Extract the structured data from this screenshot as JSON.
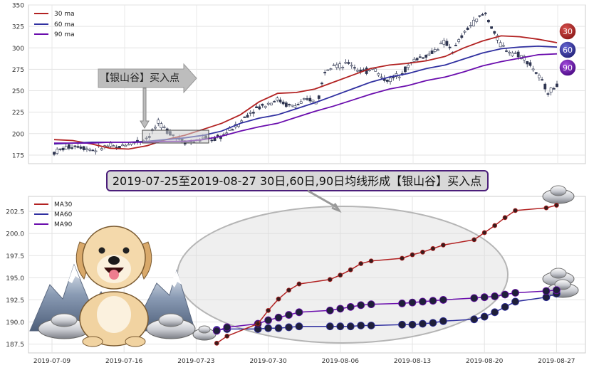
{
  "chart_data": [
    {
      "type": "candlestick",
      "ylim": [
        165,
        350
      ],
      "yticks": [
        175,
        200,
        225,
        250,
        275,
        300,
        325,
        350
      ],
      "grid": true,
      "legend": {
        "placement": "top-left",
        "entries": [
          "30 ma",
          "60 ma",
          "90 ma"
        ]
      },
      "series": [
        {
          "name": "30 ma",
          "color": "#b22222",
          "values": [
            193,
            192,
            188,
            183,
            182,
            186,
            193,
            198,
            205,
            212,
            222,
            237,
            247,
            248,
            252,
            260,
            268,
            276,
            280,
            282,
            285,
            290,
            300,
            308,
            314,
            313,
            310,
            306
          ]
        },
        {
          "name": "60 ma",
          "color": "#3030a0",
          "values": [
            188,
            189,
            190,
            190,
            190,
            191,
            193,
            195,
            198,
            203,
            212,
            218,
            222,
            229,
            236,
            244,
            252,
            260,
            266,
            270,
            276,
            280,
            287,
            294,
            299,
            301,
            302,
            301
          ]
        },
        {
          "name": "90 ma",
          "color": "#6a0dad",
          "values": [
            189,
            189,
            189,
            190,
            190,
            190,
            191,
            191,
            193,
            197,
            203,
            208,
            212,
            219,
            226,
            232,
            239,
            246,
            252,
            256,
            262,
            266,
            272,
            279,
            284,
            288,
            292,
            293
          ]
        }
      ],
      "price_path": [
        178,
        182,
        185,
        186,
        183,
        181,
        184,
        186,
        183,
        188,
        190,
        192,
        198,
        212,
        205,
        198,
        192,
        190,
        192,
        195,
        193,
        197,
        204,
        210,
        220,
        228,
        232,
        236,
        240,
        234,
        232,
        236,
        240,
        236,
        276,
        282,
        277,
        283,
        275,
        272,
        278,
        265,
        262,
        268,
        275,
        285,
        290,
        292,
        300,
        307,
        296,
        312,
        325,
        333,
        341,
        320,
        303,
        296,
        293,
        288,
        276,
        262,
        248,
        257
      ],
      "badges": [
        "30",
        "60",
        "90"
      ],
      "annotation": "【银山谷】买入点"
    },
    {
      "type": "line",
      "title": "2019-07-25至2019-08-27 30日,60日,90日均线形成【银山谷】买入点",
      "x": [
        "2019-07-25",
        "2019-07-26",
        "2019-07-29",
        "2019-07-30",
        "2019-07-31",
        "2019-08-01",
        "2019-08-02",
        "2019-08-05",
        "2019-08-06",
        "2019-08-07",
        "2019-08-08",
        "2019-08-09",
        "2019-08-12",
        "2019-08-13",
        "2019-08-14",
        "2019-08-15",
        "2019-08-16",
        "2019-08-19",
        "2019-08-20",
        "2019-08-21",
        "2019-08-22",
        "2019-08-23",
        "2019-08-26",
        "2019-08-27"
      ],
      "xticks": [
        "2019-07-09",
        "2019-07-16",
        "2019-07-23",
        "2019-07-30",
        "2019-08-06",
        "2019-08-13",
        "2019-08-20",
        "2019-08-27"
      ],
      "ylim": [
        186.5,
        204.2
      ],
      "yticks": [
        187.5,
        190.0,
        192.5,
        195.0,
        197.5,
        200.0,
        202.5
      ],
      "grid": true,
      "legend": {
        "placement": "top-left",
        "entries": [
          "MA30",
          "MA60",
          "MA90"
        ]
      },
      "series": [
        {
          "name": "MA30",
          "color": "#b22222",
          "values": [
            187.6,
            188.4,
            189.8,
            191.3,
            192.6,
            193.6,
            194.3,
            194.8,
            195.3,
            195.9,
            196.6,
            196.9,
            197.2,
            197.6,
            197.9,
            198.3,
            198.7,
            199.3,
            200.1,
            200.9,
            201.8,
            202.6,
            202.9,
            203.2
          ]
        },
        {
          "name": "MA60",
          "color": "#3030a0",
          "values": [
            189.1,
            189.2,
            189.2,
            189.3,
            189.3,
            189.4,
            189.5,
            189.5,
            189.5,
            189.5,
            189.6,
            189.6,
            189.7,
            189.7,
            189.8,
            189.9,
            190.1,
            190.3,
            190.6,
            191.1,
            191.7,
            192.3,
            192.8,
            193.2
          ]
        },
        {
          "name": "MA90",
          "color": "#6a0dad",
          "values": [
            189.0,
            189.4,
            189.8,
            190.2,
            190.5,
            190.8,
            191.1,
            191.3,
            191.5,
            191.7,
            191.9,
            192.0,
            192.1,
            192.2,
            192.3,
            192.4,
            192.5,
            192.7,
            192.8,
            192.9,
            193.1,
            193.3,
            193.5,
            193.6
          ]
        }
      ]
    }
  ]
}
